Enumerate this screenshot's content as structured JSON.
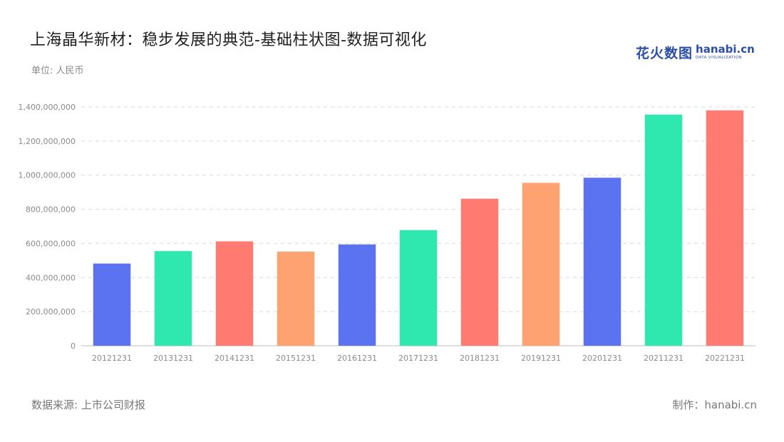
{
  "title": "上海晶华新材：稳步发展的典范-基础柱状图-数据可视化",
  "unit": "单位: 人民币",
  "source": "数据来源: 上市公司财报",
  "credit": "制作：hanabi.cn",
  "logo": {
    "cn": "花火数图",
    "en": "hanabi.cn",
    "sub": "DATA VISUALIZATION"
  },
  "chart_data": {
    "type": "bar",
    "categories": [
      "20121231",
      "20131231",
      "20141231",
      "20151231",
      "20161231",
      "20171231",
      "20181231",
      "20191231",
      "20201231",
      "20211231",
      "20221231"
    ],
    "values": [
      482000000,
      555000000,
      612000000,
      552000000,
      594000000,
      678000000,
      862000000,
      955000000,
      985000000,
      1355000000,
      1380000000
    ],
    "colors": [
      "#5b73f0",
      "#2ee8b0",
      "#ff7a70",
      "#ffa272",
      "#5b73f0",
      "#2ee8b0",
      "#ff7a70",
      "#ffa272",
      "#5b73f0",
      "#2ee8b0",
      "#ff7a70"
    ],
    "yticks": [
      "0",
      "200,000,000",
      "400,000,000",
      "600,000,000",
      "800,000,000",
      "1,000,000,000",
      "1,200,000,000",
      "1,400,000,000"
    ],
    "ylim": [
      0,
      1400000000
    ],
    "grid": true
  }
}
